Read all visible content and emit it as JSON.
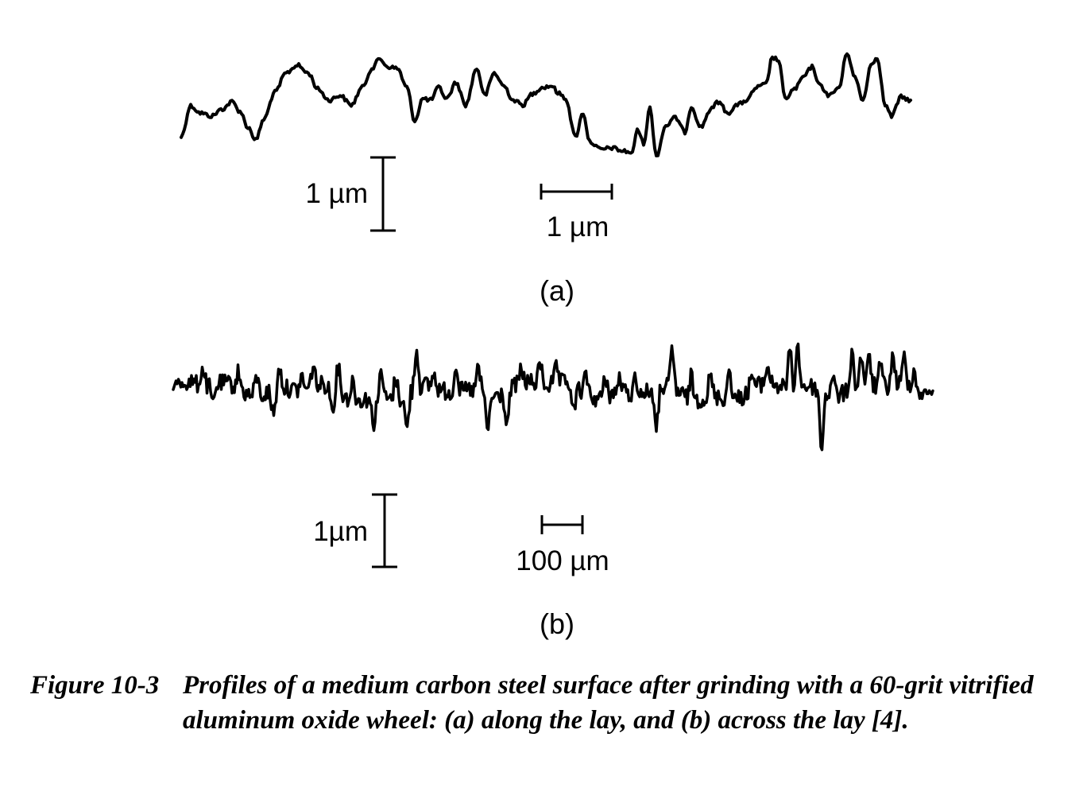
{
  "figure": {
    "panel_a": {
      "label": "(a)",
      "vertical_scale": "1 µm",
      "horizontal_scale": "1 µm"
    },
    "panel_b": {
      "label": "(b)",
      "vertical_scale": "1µm",
      "horizontal_scale": "100 µm"
    }
  },
  "caption": {
    "number": "Figure 10-3",
    "text": "Profiles of a medium carbon steel surface after grinding with a 60-grit vitrified aluminum oxide wheel: (a) along the lay, and (b) across the lay [4]."
  }
}
